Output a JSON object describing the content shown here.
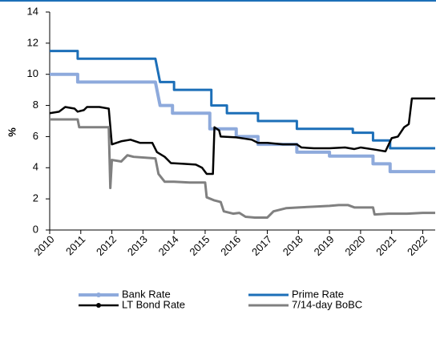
{
  "chart_data": {
    "type": "line",
    "y_label": "%",
    "xlim": [
      2010,
      2022.4
    ],
    "xticks": [
      2010,
      2011,
      2012,
      2013,
      2014,
      2015,
      2016,
      2017,
      2018,
      2019,
      2020,
      2021,
      2022
    ],
    "ylim": [
      0,
      14
    ],
    "yticks": [
      0,
      2,
      4,
      6,
      8,
      10,
      12,
      14
    ],
    "grid": false,
    "legend": "bottom",
    "series": [
      {
        "name": "Bank Rate",
        "color": "#8eaadc",
        "x": [
          2010,
          2010.9,
          2010.9,
          2013.4,
          2013.5,
          2013.55,
          2013.95,
          2013.95,
          2015.15,
          2015.15,
          2016.0,
          2016.0,
          2016.7,
          2016.7,
          2017.95,
          2017.95,
          2019.0,
          2019.0,
          2020.4,
          2020.4,
          2020.95,
          2020.95,
          2022.4
        ],
        "values": [
          10,
          10,
          9.5,
          9.5,
          8.5,
          8,
          8,
          7.5,
          7.5,
          6.5,
          6.5,
          6,
          6,
          5.5,
          5.5,
          5,
          5,
          4.75,
          4.75,
          4.25,
          4.25,
          3.75,
          3.75
        ]
      },
      {
        "name": "Prime Rate",
        "color": "#1c6fb8",
        "x": [
          2010,
          2010.9,
          2010.9,
          2013.4,
          2013.55,
          2014.0,
          2014.0,
          2015.2,
          2015.2,
          2015.7,
          2015.7,
          2016.7,
          2016.7,
          2017.95,
          2017.95,
          2019.75,
          2019.75,
          2020.4,
          2020.4,
          2020.95,
          2020.95,
          2022.4
        ],
        "values": [
          11.5,
          11.5,
          11,
          11,
          9.5,
          9.5,
          9,
          9,
          8,
          8,
          7.5,
          7.5,
          7,
          7,
          6.5,
          6.5,
          6.25,
          6.25,
          5.75,
          5.75,
          5.25,
          5.25
        ]
      },
      {
        "name": "LT Bond Rate",
        "color": "#000000",
        "x": [
          2010,
          2010.3,
          2010.5,
          2010.8,
          2010.9,
          2011.1,
          2011.2,
          2011.6,
          2011.9,
          2012.0,
          2012.3,
          2012.6,
          2012.9,
          2013.3,
          2013.45,
          2013.7,
          2013.9,
          2014.3,
          2014.7,
          2014.9,
          2015.05,
          2015.25,
          2015.3,
          2015.45,
          2015.5,
          2016.0,
          2016.5,
          2016.7,
          2017.0,
          2017.5,
          2017.95,
          2018.1,
          2018.5,
          2019.0,
          2019.5,
          2019.8,
          2020.0,
          2020.5,
          2020.8,
          2021.0,
          2021.2,
          2021.4,
          2021.55,
          2021.65,
          2022.0,
          2022.4
        ],
        "values": [
          7.5,
          7.6,
          7.9,
          7.8,
          7.6,
          7.7,
          7.9,
          7.9,
          7.8,
          5.5,
          5.7,
          5.8,
          5.6,
          5.6,
          5.0,
          4.7,
          4.3,
          4.25,
          4.2,
          4.0,
          3.6,
          3.6,
          6.6,
          6.4,
          6.0,
          5.95,
          5.8,
          5.6,
          5.6,
          5.5,
          5.5,
          5.3,
          5.25,
          5.25,
          5.3,
          5.2,
          5.3,
          5.15,
          5.05,
          5.9,
          6.0,
          6.6,
          6.8,
          8.45,
          8.45,
          8.45
        ]
      },
      {
        "name": "7/14-day BoBC",
        "color": "#808080",
        "x": [
          2010,
          2010.9,
          2010.95,
          2011.9,
          2011.95,
          2012.0,
          2012.3,
          2012.5,
          2012.7,
          2013.4,
          2013.5,
          2013.7,
          2014.0,
          2014.5,
          2015.0,
          2015.05,
          2015.3,
          2015.5,
          2015.6,
          2015.9,
          2016.1,
          2016.3,
          2016.6,
          2017.0,
          2017.2,
          2017.6,
          2018.0,
          2018.5,
          2019.0,
          2019.3,
          2019.6,
          2019.8,
          2020.4,
          2020.45,
          2020.9,
          2021.5,
          2022.0,
          2022.4
        ],
        "values": [
          7.1,
          7.1,
          6.6,
          6.6,
          2.7,
          4.5,
          4.4,
          4.8,
          4.7,
          4.6,
          3.6,
          3.1,
          3.1,
          3.05,
          3.05,
          2.1,
          1.9,
          1.8,
          1.2,
          1.05,
          1.1,
          0.85,
          0.8,
          0.8,
          1.2,
          1.4,
          1.45,
          1.5,
          1.55,
          1.6,
          1.6,
          1.45,
          1.45,
          1.0,
          1.05,
          1.05,
          1.1,
          1.1
        ]
      }
    ]
  }
}
